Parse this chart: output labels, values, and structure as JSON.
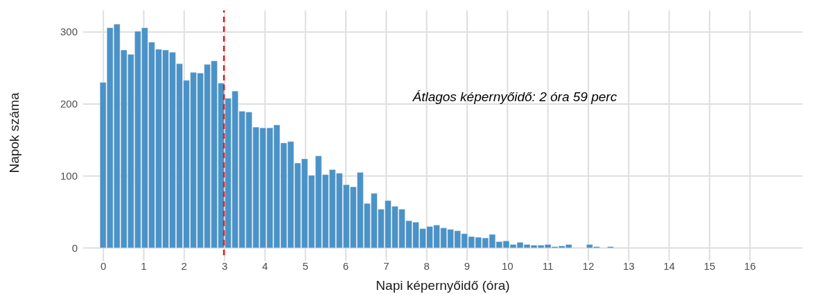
{
  "chart_data": {
    "type": "histogram",
    "xlabel": "Napi képernyőidő (óra)",
    "ylabel": "Napok száma",
    "bins": [
      -0.086,
      0.086,
      0.258,
      0.43,
      0.602,
      0.774,
      0.946,
      1.118,
      1.29,
      1.462,
      1.634,
      1.806,
      1.978,
      2.15,
      2.322,
      2.494,
      2.666,
      2.838,
      3.01,
      3.182,
      3.354,
      3.526,
      3.698,
      3.87,
      4.042,
      4.214,
      4.386,
      4.558,
      4.73,
      4.902,
      5.074,
      5.246,
      5.418,
      5.59,
      5.762,
      5.934,
      6.106,
      6.278,
      6.45,
      6.622,
      6.794,
      6.966,
      7.138,
      7.31,
      7.482,
      7.654,
      7.826,
      7.998,
      8.17,
      8.342,
      8.514,
      8.686,
      8.858,
      9.03,
      9.202,
      9.374,
      9.546,
      9.718,
      9.89,
      10.062,
      10.234,
      10.406,
      10.578,
      10.75,
      10.922,
      11.094,
      11.266,
      11.438,
      11.61,
      11.782,
      11.954,
      12.126,
      12.298,
      12.47,
      12.642,
      12.814,
      12.986,
      13.158,
      13.33,
      13.502,
      13.674,
      13.846,
      14.018,
      14.19,
      14.362,
      14.534,
      14.706,
      14.878,
      15.05,
      15.222,
      15.394,
      15.566,
      15.738,
      15.91,
      16.082,
      16.254,
      16.426,
      16.598,
      16.77,
      16.942,
      17.114
    ],
    "values": [
      230,
      306,
      311,
      275,
      269,
      301,
      306,
      286,
      276,
      275,
      272,
      256,
      233,
      244,
      243,
      255,
      260,
      229,
      208,
      218,
      190,
      189,
      168,
      167,
      167,
      171,
      146,
      148,
      118,
      124,
      101,
      128,
      102,
      109,
      104,
      88,
      85,
      105,
      62,
      76,
      54,
      66,
      58,
      54,
      38,
      36,
      27,
      30,
      32,
      28,
      26,
      24,
      20,
      16,
      15,
      14,
      19,
      9,
      10,
      5,
      8,
      5,
      4,
      4,
      5,
      2,
      3,
      5,
      0,
      0,
      5,
      2,
      0,
      2,
      null,
      0,
      0,
      null,
      0,
      0,
      0,
      0,
      0,
      null,
      0,
      0,
      null,
      0,
      0,
      0,
      0,
      0,
      0,
      0,
      0,
      0,
      0,
      0,
      0,
      null
    ],
    "color": "#4b92c7",
    "xlim": [
      -0.5,
      17.3
    ],
    "xticks": [
      0,
      1,
      2,
      3,
      4,
      5,
      6,
      7,
      8,
      9,
      10,
      11,
      12,
      13,
      14,
      15,
      16
    ],
    "ylim": [
      -10,
      330
    ],
    "yticks": [
      0,
      100,
      200,
      300
    ],
    "grid": true,
    "ref_lines": [
      {
        "axis": "x",
        "value": 2.983,
        "color": "#e41a1c",
        "line_style": "dashed"
      }
    ],
    "annotations": [
      "Átlagos képernyőidő: 2 óra 59 perc"
    ]
  }
}
